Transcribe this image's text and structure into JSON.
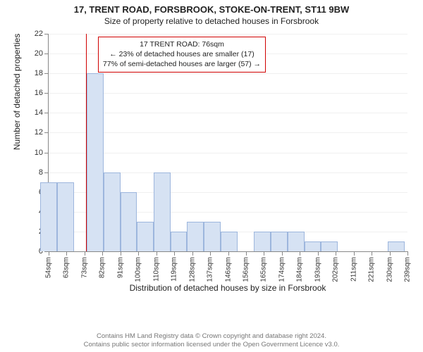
{
  "title": {
    "main": "17, TRENT ROAD, FORSBROOK, STOKE-ON-TRENT, ST11 9BW",
    "sub": "Size of property relative to detached houses in Forsbrook"
  },
  "chart": {
    "type": "bar",
    "ylabel": "Number of detached properties",
    "xlabel": "Distribution of detached houses by size in Forsbrook",
    "ylim": [
      0,
      22
    ],
    "ytick_step": 2,
    "yticks": [
      0,
      2,
      4,
      6,
      8,
      10,
      12,
      14,
      16,
      18,
      20,
      22
    ],
    "xtick_labels": [
      "54sqm",
      "63sqm",
      "73sqm",
      "82sqm",
      "91sqm",
      "100sqm",
      "110sqm",
      "119sqm",
      "128sqm",
      "137sqm",
      "146sqm",
      "156sqm",
      "165sqm",
      "174sqm",
      "184sqm",
      "193sqm",
      "202sqm",
      "211sqm",
      "221sqm",
      "230sqm",
      "239sqm"
    ],
    "bars": [
      {
        "x": 51,
        "value": 7
      },
      {
        "x": 60,
        "value": 7
      },
      {
        "x": 76,
        "value": 18
      },
      {
        "x": 85,
        "value": 8
      },
      {
        "x": 94,
        "value": 6
      },
      {
        "x": 103,
        "value": 3
      },
      {
        "x": 112,
        "value": 8
      },
      {
        "x": 121,
        "value": 2
      },
      {
        "x": 130,
        "value": 3
      },
      {
        "x": 139,
        "value": 3
      },
      {
        "x": 148,
        "value": 2
      },
      {
        "x": 166,
        "value": 2
      },
      {
        "x": 175,
        "value": 2
      },
      {
        "x": 184,
        "value": 2
      },
      {
        "x": 193,
        "value": 1
      },
      {
        "x": 202,
        "value": 1
      },
      {
        "x": 238,
        "value": 1
      }
    ],
    "x_domain": [
      51,
      244
    ],
    "bar_width_units": 9,
    "bar_fill": "#d6e2f3",
    "bar_stroke": "#9db6dd",
    "grid_color": "#f0f0f0",
    "axis_color": "#888888",
    "background_color": "#ffffff",
    "highlight_x": 76,
    "highlight_color": "#d00000",
    "label_fontsize": 12,
    "tick_fontsize": 11
  },
  "callout": {
    "line1": "17 TRENT ROAD: 76sqm",
    "line2": "← 23% of detached houses are smaller (17)",
    "line3": "77% of semi-detached houses are larger (57) →"
  },
  "footer": {
    "line1": "Contains HM Land Registry data © Crown copyright and database right 2024.",
    "line2": "Contains public sector information licensed under the Open Government Licence v3.0."
  }
}
